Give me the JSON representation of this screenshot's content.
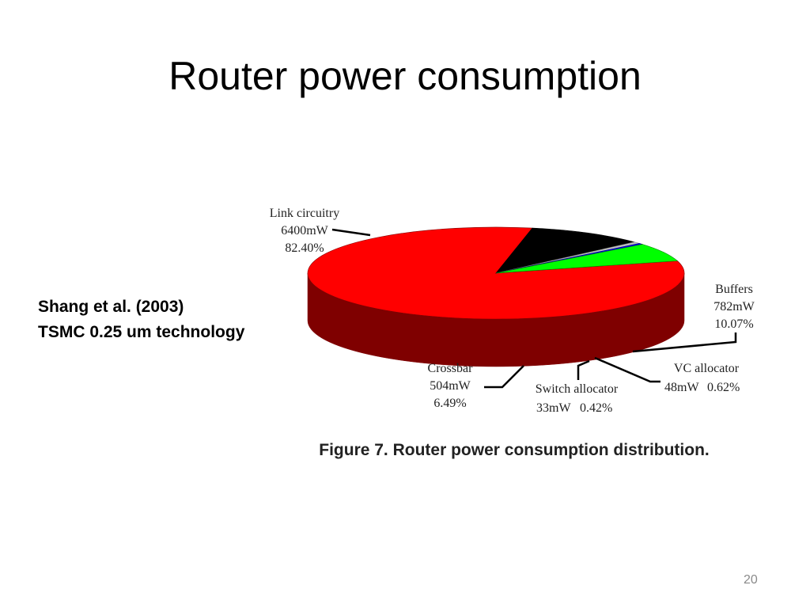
{
  "slide": {
    "title": "Router power consumption",
    "citation_line1": "Shang et al. (2003)",
    "citation_line2": "TSMC 0.25 um technology",
    "page_number": "20"
  },
  "chart_data": {
    "type": "pie",
    "title": "",
    "caption": "Figure 7. Router power consumption distribution.",
    "units": "mW",
    "slices": [
      {
        "name": "Link circuitry",
        "value_label": "6400mW",
        "percent_label": "82.40%",
        "value": 6400,
        "percent": 82.4,
        "color": "#ff0000",
        "side_color": "#7f0000"
      },
      {
        "name": "Buffers",
        "value_label": "782mW",
        "percent_label": "10.07%",
        "value": 782,
        "percent": 10.07,
        "color": "#000000",
        "side_color": "#000000"
      },
      {
        "name": "VC allocator",
        "value_label": "48mW",
        "percent_label": "0.62%",
        "value": 48,
        "percent": 0.62,
        "color": "#c0c0c0",
        "side_color": "#808080"
      },
      {
        "name": "Switch allocator",
        "value_label": "33mW",
        "percent_label": "0.42%",
        "value": 33,
        "percent": 0.42,
        "color": "#0000ff",
        "side_color": "#000080"
      },
      {
        "name": "Crossbar",
        "value_label": "504mW",
        "percent_label": "6.49%",
        "value": 504,
        "percent": 6.49,
        "color": "#00ff00",
        "side_color": "#008000"
      }
    ]
  }
}
